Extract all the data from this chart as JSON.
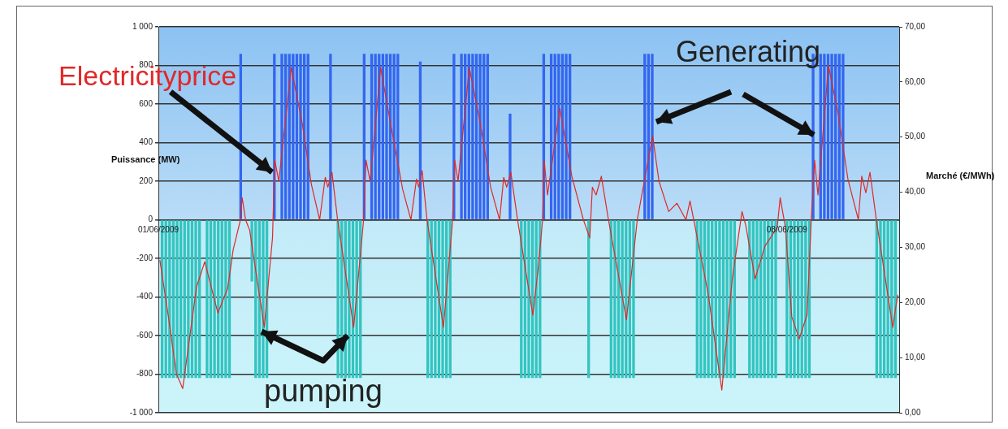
{
  "chart_data": {
    "type": "bar",
    "ylabel": "Puissance (MW)",
    "y2label": "Marché (€/MWh)",
    "annotations": [
      "Electricityprice",
      "Generating",
      "pumping"
    ],
    "xlim": [
      "2009-06-01T00:00",
      "2009-06-09T06:00"
    ],
    "xticks": [
      {
        "value": "2009-06-01",
        "label": "01/06/2009"
      },
      {
        "value": "2009-06-08",
        "label": "08/06/2009"
      }
    ],
    "ylim": [
      -1000,
      1000
    ],
    "yticks": [
      {
        "value": -1000,
        "label": "-1 000"
      },
      -800,
      -600,
      -400,
      -200,
      0,
      200,
      400,
      600,
      800,
      {
        "value": 1000,
        "label": "1 000"
      }
    ],
    "y2lim": [
      0,
      70
    ],
    "y2ticks": [
      {
        "value": 0,
        "label": "0,00"
      },
      {
        "value": 10,
        "label": "10,00"
      },
      {
        "value": 20,
        "label": "20,00"
      },
      {
        "value": 30,
        "label": "30,00"
      },
      {
        "value": 40,
        "label": "40,00"
      },
      {
        "value": 50,
        "label": "50,00"
      },
      {
        "value": 60,
        "label": "60,00"
      },
      {
        "value": 70,
        "label": "70,00"
      }
    ],
    "grid": "y",
    "marker": "none",
    "series": [
      {
        "color": "#3366f0",
        "x": [
          "2009-06-01T22:00",
          "2009-06-02T07:00",
          "2009-06-02T09:00",
          "2009-06-02T10:00",
          "2009-06-02T11:00",
          "2009-06-02T12:00",
          "2009-06-02T13:00",
          "2009-06-02T14:00",
          "2009-06-02T15:00",
          "2009-06-02T16:00",
          "2009-06-02T22:00",
          "2009-06-03T07:00",
          "2009-06-03T09:00",
          "2009-06-03T10:00",
          "2009-06-03T11:00",
          "2009-06-03T12:00",
          "2009-06-03T13:00",
          "2009-06-03T14:00",
          "2009-06-03T15:00",
          "2009-06-03T16:00",
          "2009-06-03T22:00",
          "2009-06-04T07:00",
          "2009-06-04T09:00",
          "2009-06-04T10:00",
          "2009-06-04T11:00",
          "2009-06-04T12:00",
          "2009-06-04T13:00",
          "2009-06-04T14:00",
          "2009-06-04T15:00",
          "2009-06-04T16:00",
          "2009-06-04T22:00",
          "2009-06-05T07:00",
          "2009-06-05T09:00",
          "2009-06-05T10:00",
          "2009-06-05T11:00",
          "2009-06-05T12:00",
          "2009-06-05T13:00",
          "2009-06-05T14:00",
          "2009-06-06T10:00",
          "2009-06-06T11:00",
          "2009-06-06T12:00",
          "2009-06-08T07:00",
          "2009-06-08T09:00",
          "2009-06-08T10:00",
          "2009-06-08T11:00",
          "2009-06-08T12:00",
          "2009-06-08T13:00",
          "2009-06-08T14:00",
          "2009-06-08T15:00"
        ],
        "values": [
          860,
          860,
          860,
          860,
          860,
          860,
          860,
          860,
          860,
          860,
          860,
          860,
          860,
          860,
          860,
          860,
          860,
          860,
          860,
          860,
          820,
          860,
          860,
          860,
          860,
          860,
          860,
          860,
          860,
          860,
          550,
          860,
          860,
          860,
          860,
          860,
          860,
          860,
          860,
          860,
          860,
          860,
          860,
          860,
          860,
          860,
          860,
          860,
          860
        ]
      },
      {
        "color": "#33c4c0",
        "x": [
          "2009-06-01T01:00",
          "2009-06-01T02:00",
          "2009-06-01T03:00",
          "2009-06-01T04:00",
          "2009-06-01T05:00",
          "2009-06-01T06:00",
          "2009-06-01T07:00",
          "2009-06-01T08:00",
          "2009-06-01T09:00",
          "2009-06-01T10:00",
          "2009-06-01T11:00",
          "2009-06-01T13:00",
          "2009-06-01T14:00",
          "2009-06-01T15:00",
          "2009-06-01T16:00",
          "2009-06-01T17:00",
          "2009-06-01T18:00",
          "2009-06-01T19:00",
          "2009-06-02T01:00",
          "2009-06-02T02:00",
          "2009-06-02T03:00",
          "2009-06-02T04:00",
          "2009-06-02T05:00",
          "2009-06-03T00:00",
          "2009-06-03T01:00",
          "2009-06-03T02:00",
          "2009-06-03T03:00",
          "2009-06-03T04:00",
          "2009-06-03T05:00",
          "2009-06-03T06:00",
          "2009-06-04T00:00",
          "2009-06-04T01:00",
          "2009-06-04T02:00",
          "2009-06-04T03:00",
          "2009-06-04T04:00",
          "2009-06-04T05:00",
          "2009-06-04T06:00",
          "2009-06-05T01:00",
          "2009-06-05T02:00",
          "2009-06-05T03:00",
          "2009-06-05T04:00",
          "2009-06-05T05:00",
          "2009-06-05T06:00",
          "2009-06-05T19:00",
          "2009-06-06T01:00",
          "2009-06-06T02:00",
          "2009-06-06T03:00",
          "2009-06-06T04:00",
          "2009-06-06T05:00",
          "2009-06-06T06:00",
          "2009-06-06T07:00",
          "2009-06-07T00:00",
          "2009-06-07T01:00",
          "2009-06-07T02:00",
          "2009-06-07T03:00",
          "2009-06-07T04:00",
          "2009-06-07T05:00",
          "2009-06-07T06:00",
          "2009-06-07T07:00",
          "2009-06-07T08:00",
          "2009-06-07T09:00",
          "2009-06-07T10:00",
          "2009-06-07T14:00",
          "2009-06-07T15:00",
          "2009-06-07T16:00",
          "2009-06-07T17:00",
          "2009-06-07T18:00",
          "2009-06-07T19:00",
          "2009-06-07T20:00",
          "2009-06-07T21:00",
          "2009-06-08T00:00",
          "2009-06-08T01:00",
          "2009-06-08T02:00",
          "2009-06-08T03:00",
          "2009-06-08T04:00",
          "2009-06-08T05:00",
          "2009-06-08T06:00",
          "2009-06-09T00:00",
          "2009-06-09T01:00",
          "2009-06-09T02:00",
          "2009-06-09T03:00",
          "2009-06-09T04:00",
          "2009-06-09T05:00"
        ],
        "values": [
          -820,
          -820,
          -820,
          -820,
          -820,
          -820,
          -820,
          -820,
          -820,
          -820,
          -820,
          -820,
          -820,
          -820,
          -820,
          -820,
          -820,
          -820,
          -320,
          -820,
          -820,
          -820,
          -820,
          -820,
          -820,
          -820,
          -820,
          -820,
          -820,
          -820,
          -820,
          -820,
          -820,
          -820,
          -820,
          -820,
          -820,
          -820,
          -820,
          -820,
          -820,
          -820,
          -820,
          -820,
          -820,
          -820,
          -820,
          -820,
          -820,
          -820,
          -820,
          -820,
          -820,
          -820,
          -820,
          -820,
          -820,
          -820,
          -820,
          -820,
          -820,
          -820,
          -820,
          -820,
          -820,
          -820,
          -820,
          -820,
          -820,
          -820,
          -820,
          -820,
          -820,
          -820,
          -820,
          -820,
          -820,
          -820,
          -820,
          -820,
          -820,
          -820,
          -820
        ]
      },
      {
        "type": "line",
        "axis": "y2",
        "color": "#e02828",
        "x": [
          "2009-06-01T00:24",
          "2009-06-01T02:36",
          "2009-06-01T04:48",
          "2009-06-01T06:30",
          "2009-06-01T10:12",
          "2009-06-01T12:24",
          "2009-06-01T15:54",
          "2009-06-01T18:30",
          "2009-06-01T20:00",
          "2009-06-01T21:48",
          "2009-06-01T22:24",
          "2009-06-01T23:18",
          "2009-06-02T00:24",
          "2009-06-02T04:18",
          "2009-06-02T06:30",
          "2009-06-02T07:06",
          "2009-06-02T08:12",
          "2009-06-02T11:30",
          "2009-06-02T14:30",
          "2009-06-02T16:54",
          "2009-06-02T19:06",
          "2009-06-02T20:36",
          "2009-06-02T21:18",
          "2009-06-02T22:24",
          "2009-06-02T23:54",
          "2009-06-03T04:12",
          "2009-06-03T06:48",
          "2009-06-03T07:30",
          "2009-06-03T08:36",
          "2009-06-03T11:24",
          "2009-06-03T14:00",
          "2009-06-03T17:18",
          "2009-06-03T19:30",
          "2009-06-03T21:00",
          "2009-06-03T21:36",
          "2009-06-03T22:30",
          "2009-06-03T23:48",
          "2009-06-04T04:12",
          "2009-06-04T06:36",
          "2009-06-04T07:12",
          "2009-06-04T08:06",
          "2009-06-04T11:06",
          "2009-06-04T14:00",
          "2009-06-04T16:48",
          "2009-06-04T19:12",
          "2009-06-04T20:18",
          "2009-06-04T21:06",
          "2009-06-04T22:12",
          "2009-06-05T00:00",
          "2009-06-05T04:06",
          "2009-06-05T05:36",
          "2009-06-05T06:42",
          "2009-06-05T07:06",
          "2009-06-05T08:00",
          "2009-06-05T11:18",
          "2009-06-05T14:30",
          "2009-06-05T17:36",
          "2009-06-05T19:18",
          "2009-06-05T20:00",
          "2009-06-05T21:00",
          "2009-06-05T22:24",
          "2009-06-06T00:18",
          "2009-06-06T05:06",
          "2009-06-06T08:00",
          "2009-06-06T12:06",
          "2009-06-06T13:48",
          "2009-06-06T16:24",
          "2009-06-06T18:36",
          "2009-06-06T21:00",
          "2009-06-06T22:06",
          "2009-06-06T23:12",
          "2009-06-07T02:54",
          "2009-06-07T06:36",
          "2009-06-07T09:24",
          "2009-06-07T12:00",
          "2009-06-07T13:00",
          "2009-06-07T15:30",
          "2009-06-07T18:06",
          "2009-06-07T21:24",
          "2009-06-07T22:12",
          "2009-06-07T23:36",
          "2009-06-08T01:18",
          "2009-06-08T03:18",
          "2009-06-08T05:24",
          "2009-06-08T06:30",
          "2009-06-08T07:24",
          "2009-06-08T08:18",
          "2009-06-08T11:06",
          "2009-06-08T13:42",
          "2009-06-08T16:18",
          "2009-06-08T19:06",
          "2009-06-08T20:00",
          "2009-06-08T21:06",
          "2009-06-08T22:12",
          "2009-06-08T23:54",
          "2009-06-09T04:18",
          "2009-06-09T05:36"
        ],
        "values": [
          27.7,
          17.8,
          7.1,
          4.4,
          22.8,
          27.4,
          18.1,
          22.5,
          29.6,
          34.6,
          39,
          35,
          33.1,
          15.5,
          31.7,
          45.8,
          42,
          62.6,
          52.3,
          41.4,
          35,
          42.7,
          40.9,
          43.6,
          35,
          15.5,
          34.6,
          45.8,
          42,
          62.6,
          52.7,
          40.5,
          35,
          42.4,
          40.9,
          43.9,
          35,
          15.5,
          34.6,
          45.8,
          42,
          62.6,
          52.7,
          40.9,
          35,
          42.7,
          40.9,
          43.6,
          35,
          17.7,
          26.7,
          35,
          45.8,
          39.5,
          55.2,
          42.9,
          35,
          31.7,
          40.9,
          39.5,
          42.9,
          35,
          16.9,
          35,
          50.2,
          42,
          36.5,
          38,
          35,
          38.4,
          34.6,
          21.8,
          4.1,
          24.3,
          36.5,
          34,
          24.3,
          30.2,
          33.6,
          39,
          33.6,
          17.4,
          13.4,
          17.8,
          35,
          45.8,
          39.5,
          63,
          54.2,
          42.4,
          35,
          42.9,
          39.9,
          43.6,
          35,
          15.5,
          21.4
        ]
      }
    ]
  }
}
